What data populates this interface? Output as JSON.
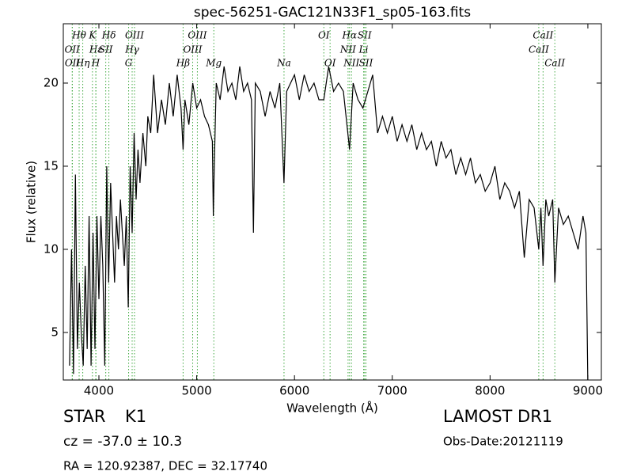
{
  "chart_data": {
    "type": "line",
    "title": "spec-56251-GAC121N33F1_sp05-163.fits",
    "x_label": "Wavelength (Å)",
    "y_label": "Flux (relative)",
    "xlim": [
      3636,
      9138
    ],
    "ylim": [
      2.14,
      23.57
    ],
    "xticks": [
      4000,
      5000,
      6000,
      7000,
      8000,
      9000
    ],
    "yticks": [
      5,
      10,
      15,
      20
    ],
    "color": "#000000",
    "line_color": "#44aa44",
    "x": [
      3700,
      3720,
      3740,
      3760,
      3780,
      3800,
      3820,
      3840,
      3860,
      3880,
      3900,
      3920,
      3940,
      3960,
      3980,
      4000,
      4020,
      4040,
      4060,
      4080,
      4100,
      4120,
      4140,
      4160,
      4180,
      4200,
      4220,
      4240,
      4260,
      4280,
      4300,
      4320,
      4340,
      4360,
      4380,
      4400,
      4420,
      4450,
      4480,
      4500,
      4530,
      4560,
      4600,
      4640,
      4680,
      4720,
      4760,
      4800,
      4840,
      4861,
      4880,
      4920,
      4960,
      5000,
      5040,
      5080,
      5120,
      5160,
      5170,
      5180,
      5200,
      5240,
      5280,
      5320,
      5360,
      5400,
      5440,
      5480,
      5520,
      5560,
      5580,
      5600,
      5650,
      5700,
      5750,
      5800,
      5850,
      5893,
      5920,
      5960,
      6000,
      6050,
      6100,
      6150,
      6200,
      6250,
      6300,
      6350,
      6400,
      6450,
      6500,
      6563,
      6600,
      6650,
      6700,
      6750,
      6800,
      6850,
      6900,
      6950,
      7000,
      7050,
      7100,
      7150,
      7200,
      7250,
      7300,
      7350,
      7400,
      7450,
      7500,
      7550,
      7600,
      7650,
      7700,
      7750,
      7800,
      7850,
      7900,
      7950,
      8000,
      8050,
      8100,
      8150,
      8200,
      8250,
      8300,
      8350,
      8400,
      8450,
      8498,
      8520,
      8542,
      8570,
      8600,
      8640,
      8662,
      8700,
      8750,
      8800,
      8850,
      8900,
      8950,
      8980,
      9000
    ],
    "values": [
      3,
      10,
      2.5,
      14.5,
      4,
      8,
      5,
      3,
      9,
      4,
      12,
      3,
      11,
      4,
      12,
      7,
      12,
      9,
      3,
      15,
      8,
      14,
      11,
      8,
      12,
      10,
      13,
      11,
      9,
      12,
      6.5,
      15,
      11,
      17,
      13,
      16,
      14,
      17,
      15,
      18,
      17,
      20.5,
      17,
      19,
      17.5,
      20,
      18,
      20.5,
      18.5,
      16,
      19,
      17.5,
      20,
      18.5,
      19,
      18,
      17.5,
      16.5,
      12,
      15,
      20,
      19,
      21,
      19.5,
      20,
      19,
      21,
      19.5,
      20,
      19,
      11,
      20,
      19.5,
      18,
      19.5,
      18.5,
      20,
      14,
      19.5,
      20,
      20.5,
      19,
      20.5,
      19.5,
      20,
      19,
      19,
      21,
      19.5,
      20,
      19.5,
      16,
      20,
      19,
      18.5,
      19.5,
      20.5,
      17,
      18,
      17,
      18,
      16.5,
      17.5,
      16.5,
      17.5,
      16,
      17,
      16,
      16.5,
      15,
      16.5,
      15.5,
      16,
      14.5,
      15.5,
      14.5,
      15.5,
      14,
      14.5,
      13.5,
      14,
      15,
      13,
      14,
      13.5,
      12.5,
      13.5,
      9.5,
      13,
      12.5,
      10,
      12.5,
      9,
      13,
      12,
      13,
      8,
      12.5,
      11.5,
      12,
      11,
      10,
      12,
      11,
      2
    ],
    "line_labels": [
      [
        {
          "label": "Hθ",
          "wavelength": 3798
        },
        {
          "label": "K",
          "wavelength": 3934
        },
        {
          "label": "Hδ",
          "wavelength": 4102
        },
        {
          "label": "OIII",
          "wavelength": 4364
        },
        {
          "label": "OIII",
          "wavelength": 5007
        },
        {
          "label": "OI",
          "wavelength": 6300
        },
        {
          "label": "Hα",
          "wavelength": 6563
        },
        {
          "label": "SII",
          "wavelength": 6717
        },
        {
          "label": "CaII",
          "wavelength": 8542
        }
      ],
      [
        {
          "label": "OII",
          "wavelength": 3727
        },
        {
          "label": "Hε",
          "wavelength": 3970
        },
        {
          "label": "SII",
          "wavelength": 4070
        },
        {
          "label": "Hγ",
          "wavelength": 4340
        },
        {
          "label": "OIII",
          "wavelength": 4959
        },
        {
          "label": "NII",
          "wavelength": 6548
        },
        {
          "label": "Li",
          "wavelength": 6707
        },
        {
          "label": "CaII",
          "wavelength": 8498
        }
      ],
      [
        {
          "label": "OII",
          "wavelength": 3729
        },
        {
          "label": "Hη",
          "wavelength": 3835
        },
        {
          "label": "H",
          "wavelength": 3968
        },
        {
          "label": "G",
          "wavelength": 4304
        },
        {
          "label": "Hβ",
          "wavelength": 4861
        },
        {
          "label": "Mg",
          "wavelength": 5175
        },
        {
          "label": "Na",
          "wavelength": 5893
        },
        {
          "label": "OI",
          "wavelength": 6364
        },
        {
          "label": "NII",
          "wavelength": 6583
        },
        {
          "label": "SII",
          "wavelength": 6731
        },
        {
          "label": "CaII",
          "wavelength": 8662
        }
      ]
    ],
    "info": {
      "class": "STAR",
      "subclass": "K1",
      "cz": "cz = -37.0 ± 10.3",
      "coords": "RA = 120.92387, DEC = 32.17740",
      "survey": "LAMOST DR1",
      "obs_date": "Obs-Date:20121119"
    }
  }
}
